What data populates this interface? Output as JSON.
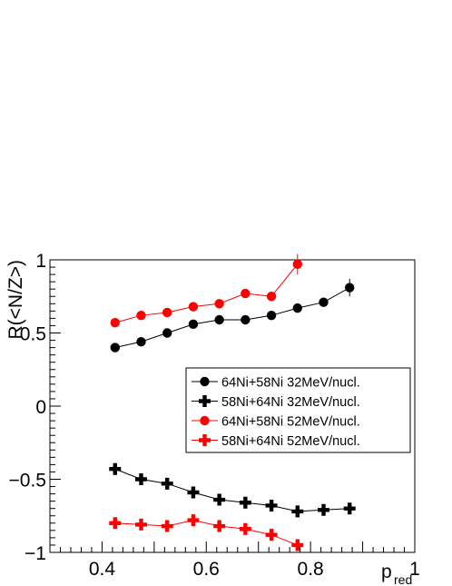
{
  "chart_data": {
    "type": "scatter",
    "title": "",
    "xlabel": "p",
    "xlabel_subscript": "red",
    "ylabel": "R(<N/Z>)",
    "xlim": [
      0.3,
      1.0
    ],
    "ylim": [
      -1.0,
      1.0
    ],
    "x_ticks": [
      0.4,
      0.6,
      0.8,
      1.0
    ],
    "x_tick_labels": [
      "0.4",
      "0.6",
      "0.8",
      "1"
    ],
    "y_ticks": [
      -1.0,
      -0.5,
      0.0,
      0.5,
      1.0
    ],
    "y_tick_labels": [
      "−1",
      "−0.5",
      "0",
      "0.5",
      "1"
    ],
    "grid": false,
    "legend_position": "center-right",
    "series": [
      {
        "name": "64Ni+58Ni 32MeV/nucl.",
        "color": "#000000",
        "marker": "circle",
        "x": [
          0.425,
          0.475,
          0.525,
          0.575,
          0.625,
          0.675,
          0.725,
          0.775,
          0.825,
          0.875
        ],
        "y": [
          0.4,
          0.44,
          0.5,
          0.56,
          0.59,
          0.59,
          0.62,
          0.67,
          0.71,
          0.81
        ],
        "yerr": [
          0.01,
          0.01,
          0.01,
          0.01,
          0.01,
          0.01,
          0.01,
          0.02,
          0.02,
          0.06
        ]
      },
      {
        "name": "58Ni+64Ni 32MeV/nucl.",
        "color": "#000000",
        "marker": "cross",
        "x": [
          0.425,
          0.475,
          0.525,
          0.575,
          0.625,
          0.675,
          0.725,
          0.775,
          0.825,
          0.875
        ],
        "y": [
          -0.43,
          -0.5,
          -0.53,
          -0.59,
          -0.64,
          -0.66,
          -0.68,
          -0.72,
          -0.71,
          -0.7
        ],
        "yerr": [
          0.01,
          0.01,
          0.01,
          0.01,
          0.01,
          0.01,
          0.01,
          0.01,
          0.01,
          0.01
        ]
      },
      {
        "name": "64Ni+58Ni 52MeV/nucl.",
        "color": "#ff0000",
        "marker": "circle",
        "x": [
          0.425,
          0.475,
          0.525,
          0.575,
          0.625,
          0.675,
          0.725,
          0.775
        ],
        "y": [
          0.57,
          0.62,
          0.64,
          0.68,
          0.7,
          0.77,
          0.75,
          0.97
        ],
        "yerr": [
          0.01,
          0.01,
          0.01,
          0.01,
          0.01,
          0.01,
          0.02,
          0.07
        ]
      },
      {
        "name": "58Ni+64Ni 52MeV/nucl.",
        "color": "#ff0000",
        "marker": "cross",
        "x": [
          0.425,
          0.475,
          0.525,
          0.575,
          0.625,
          0.675,
          0.725,
          0.775
        ],
        "y": [
          -0.8,
          -0.81,
          -0.82,
          -0.78,
          -0.82,
          -0.84,
          -0.88,
          -0.95
        ],
        "yerr": [
          0.01,
          0.01,
          0.01,
          0.01,
          0.01,
          0.01,
          0.01,
          0.02
        ]
      }
    ]
  }
}
